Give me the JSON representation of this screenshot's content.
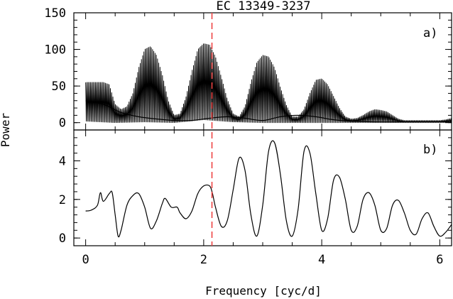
{
  "chart_data": {
    "type": "line",
    "title": "EC 13349-3237",
    "xlabel": "Frequency [cyc/d]",
    "ylabel": "Power",
    "xlim": [
      -0.2,
      6.2
    ],
    "x_ticks": [
      0,
      2,
      4,
      6
    ],
    "marker_x": 2.14,
    "marker_color": "#ee4444",
    "grid": false,
    "panels": [
      {
        "label": "a)",
        "ylim": [
          -10,
          150
        ],
        "y_ticks": [
          0,
          50,
          100,
          150
        ],
        "style": "dense-oscillation",
        "upper_envelope": {
          "x": [
            0.0,
            0.1,
            0.2,
            0.3,
            0.4,
            0.5,
            0.6,
            0.7,
            0.8,
            0.9,
            1.0,
            1.1,
            1.2,
            1.3,
            1.4,
            1.5,
            1.6,
            1.7,
            1.8,
            1.9,
            2.0,
            2.1,
            2.2,
            2.3,
            2.4,
            2.5,
            2.6,
            2.7,
            2.8,
            2.9,
            3.0,
            3.1,
            3.2,
            3.3,
            3.4,
            3.5,
            3.6,
            3.7,
            3.8,
            3.9,
            4.0,
            4.1,
            4.2,
            4.3,
            4.4,
            4.5,
            4.6,
            4.7,
            4.8,
            4.9,
            5.0,
            5.1,
            5.2,
            5.3,
            5.4,
            5.5,
            5.6,
            5.7,
            5.8,
            5.9,
            6.0,
            6.1,
            6.2
          ],
          "y": [
            55,
            55,
            55,
            55,
            52,
            25,
            18,
            22,
            40,
            75,
            100,
            104,
            92,
            65,
            30,
            10,
            12,
            35,
            70,
            100,
            108,
            106,
            90,
            62,
            32,
            12,
            8,
            22,
            55,
            82,
            92,
            90,
            75,
            48,
            24,
            8,
            8,
            18,
            40,
            58,
            60,
            52,
            36,
            20,
            8,
            5,
            6,
            10,
            15,
            18,
            17,
            15,
            10,
            5,
            3,
            3,
            3,
            3,
            3,
            3,
            3,
            4,
            6
          ]
        },
        "lower_envelope": {
          "x": [
            0.0,
            0.5,
            1.0,
            1.5,
            2.0,
            2.5,
            3.0,
            3.5,
            4.0,
            4.5,
            5.0,
            5.5,
            6.0,
            6.2
          ],
          "y": [
            2,
            0,
            1,
            0,
            4,
            1,
            0,
            0,
            0,
            0,
            0,
            0,
            0,
            0
          ]
        },
        "baseline_hump": {
          "x": [
            0.0,
            0.3,
            0.6,
            0.9,
            1.2,
            1.5,
            1.8,
            2.1,
            2.4,
            2.7,
            3.0,
            3.3,
            3.6,
            3.9,
            4.2,
            4.5,
            5.0,
            5.5,
            6.0,
            6.2
          ],
          "y": [
            30,
            25,
            14,
            8,
            5,
            3,
            3,
            6,
            8,
            6,
            3,
            8,
            10,
            8,
            4,
            2,
            1,
            1,
            1,
            1
          ]
        }
      },
      {
        "label": "b)",
        "ylim": [
          -0.4,
          5.6
        ],
        "y_ticks": [
          0,
          2,
          4
        ],
        "style": "smooth",
        "x": [
          0.0,
          0.1,
          0.2,
          0.25,
          0.3,
          0.4,
          0.45,
          0.5,
          0.55,
          0.6,
          0.7,
          0.8,
          0.9,
          1.0,
          1.1,
          1.2,
          1.3,
          1.35,
          1.45,
          1.55,
          1.6,
          1.7,
          1.8,
          1.9,
          2.0,
          2.1,
          2.15,
          2.2,
          2.3,
          2.4,
          2.5,
          2.6,
          2.7,
          2.8,
          2.9,
          3.0,
          3.1,
          3.2,
          3.3,
          3.4,
          3.5,
          3.6,
          3.7,
          3.8,
          3.9,
          4.0,
          4.1,
          4.2,
          4.3,
          4.4,
          4.5,
          4.6,
          4.7,
          4.8,
          4.9,
          5.0,
          5.1,
          5.2,
          5.3,
          5.4,
          5.5,
          5.6,
          5.7,
          5.8,
          5.9,
          6.0,
          6.1,
          6.2
        ],
        "y": [
          1.4,
          1.45,
          1.7,
          2.35,
          1.9,
          2.3,
          2.35,
          1.2,
          0.1,
          0.4,
          1.7,
          2.2,
          2.3,
          1.6,
          0.5,
          0.9,
          1.8,
          2.05,
          1.6,
          1.6,
          1.3,
          1.0,
          1.4,
          2.3,
          2.7,
          2.7,
          2.3,
          1.6,
          0.6,
          0.9,
          2.5,
          4.15,
          3.5,
          1.2,
          0.1,
          1.7,
          4.5,
          4.95,
          3.3,
          0.9,
          0.1,
          1.5,
          4.5,
          4.4,
          2.3,
          0.4,
          1.0,
          3.0,
          3.15,
          2.0,
          0.4,
          0.6,
          2.0,
          2.35,
          1.7,
          0.4,
          0.5,
          1.7,
          1.95,
          1.3,
          0.4,
          0.2,
          1.0,
          1.3,
          0.6,
          0.1,
          0.3,
          0.7
        ]
      }
    ]
  }
}
